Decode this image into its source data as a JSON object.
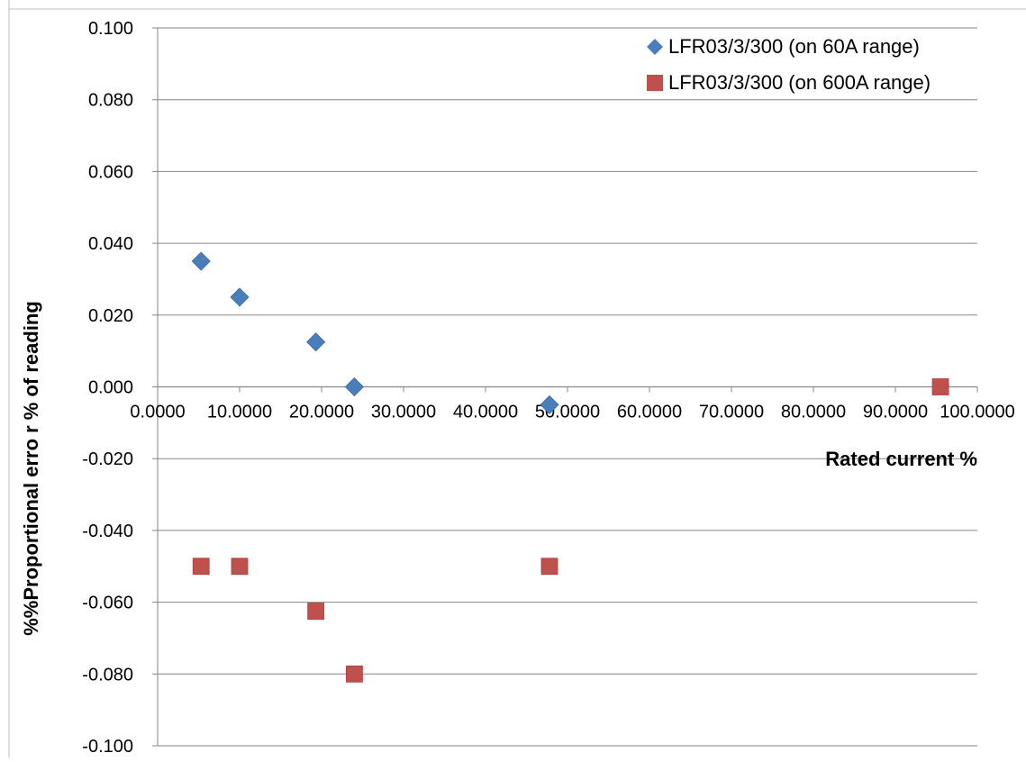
{
  "chart_data": {
    "type": "scatter",
    "title": "",
    "xlabel": "Rated current %",
    "ylabel": "%%Proportional erro r % of reading",
    "xlim": [
      0,
      100
    ],
    "ylim": [
      -0.1,
      0.1
    ],
    "x_ticks": [
      "0.0000",
      "10.0000",
      "20.0000",
      "30.0000",
      "40.0000",
      "50.0000",
      "60.0000",
      "70.0000",
      "80.0000",
      "90.0000",
      "100.0000"
    ],
    "y_ticks": [
      "0.100",
      "0.080",
      "0.060",
      "0.040",
      "0.020",
      "0.000",
      "-0.020",
      "-0.040",
      "-0.060",
      "-0.080",
      "-0.100"
    ],
    "grid": "horizontal",
    "legend_position": "top-right",
    "series": [
      {
        "name": "LFR03/3/300 (on 60A range)",
        "marker": "diamond",
        "color": "#4A7EBB",
        "points": [
          {
            "x": 5.3,
            "y": 0.035
          },
          {
            "x": 10.0,
            "y": 0.025
          },
          {
            "x": 19.3,
            "y": 0.0125
          },
          {
            "x": 24.0,
            "y": 0.0
          },
          {
            "x": 47.8,
            "y": -0.005
          }
        ]
      },
      {
        "name": "LFR03/3/300 (on 600A range)",
        "marker": "square",
        "color": "#C0504D",
        "points": [
          {
            "x": 5.3,
            "y": -0.05
          },
          {
            "x": 10.0,
            "y": -0.05
          },
          {
            "x": 19.3,
            "y": -0.0625
          },
          {
            "x": 24.0,
            "y": -0.08
          },
          {
            "x": 47.8,
            "y": -0.05
          },
          {
            "x": 95.5,
            "y": 0.0
          }
        ]
      }
    ]
  }
}
